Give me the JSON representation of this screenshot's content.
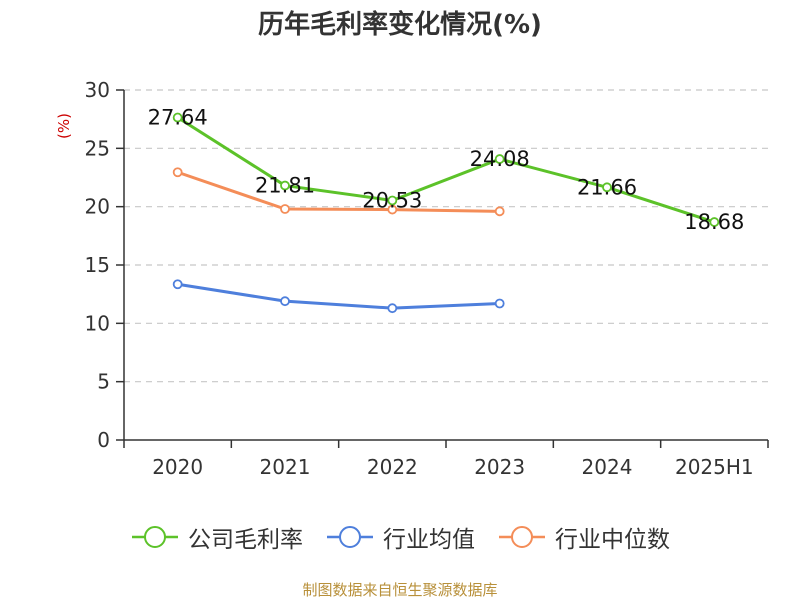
{
  "chart_data": {
    "type": "line",
    "title": "历年毛利率变化情况(%)",
    "ylabel": "(%)",
    "xlabel": "",
    "categories": [
      "2020",
      "2021",
      "2022",
      "2023",
      "2024",
      "2025H1"
    ],
    "ylim": [
      0,
      30
    ],
    "yticks": [
      0,
      5,
      10,
      15,
      20,
      25,
      30
    ],
    "grid": true,
    "legend_position": "bottom",
    "series": [
      {
        "name": "公司毛利率",
        "color": "#5cc229",
        "values": [
          27.64,
          21.81,
          20.53,
          24.08,
          21.66,
          18.68
        ],
        "labels": [
          "27.64",
          "21.81",
          "20.53",
          "24.08",
          "21.66",
          "18.68"
        ]
      },
      {
        "name": "行业均值",
        "color": "#4e7fdc",
        "values": [
          13.35,
          11.9,
          11.3,
          11.7,
          null,
          null
        ]
      },
      {
        "name": "行业中位数",
        "color": "#f48d58",
        "values": [
          22.95,
          19.8,
          19.75,
          19.6,
          null,
          null
        ]
      }
    ]
  },
  "footer": "制图数据来自恒生聚源数据库"
}
